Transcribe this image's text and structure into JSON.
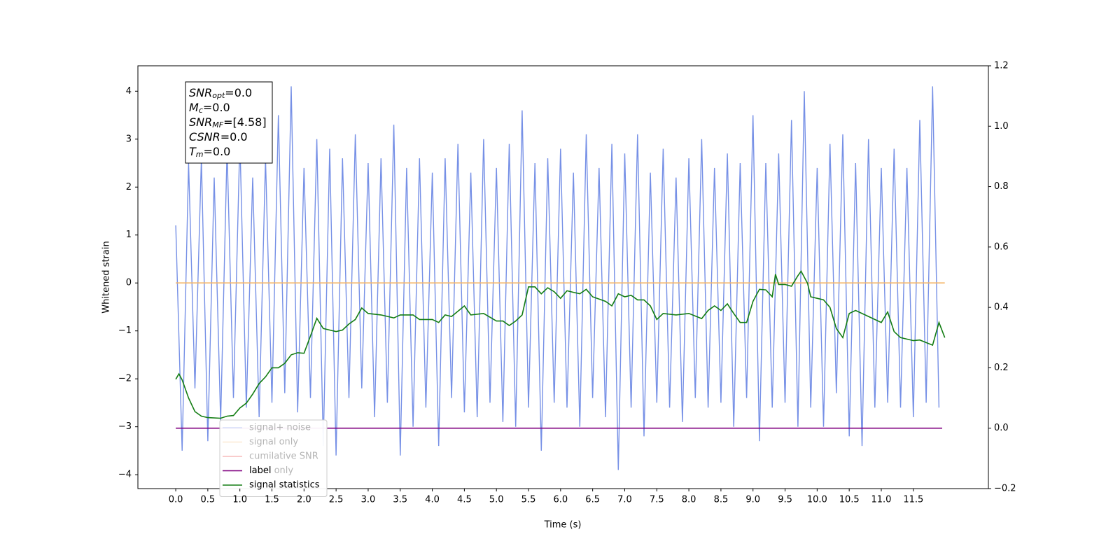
{
  "chart_data": {
    "type": "line",
    "xlabel": "Time (s)",
    "ylabel": "Whitened strain",
    "xlim": [
      -0.59,
      12.67
    ],
    "ylim": [
      -4.29,
      4.53
    ],
    "y2lim": [
      -0.2,
      1.2
    ],
    "xticks": [
      {
        "value": 0,
        "label": "0.0"
      },
      {
        "value": 0.5,
        "label": "0.5"
      },
      {
        "value": 1,
        "label": "1.0"
      },
      {
        "value": 1.5,
        "label": "1.5"
      },
      {
        "value": 2,
        "label": "2.0"
      },
      {
        "value": 2.5,
        "label": "2.5"
      },
      {
        "value": 3,
        "label": "3.0"
      },
      {
        "value": 3.5,
        "label": "3.5"
      },
      {
        "value": 4,
        "label": "4.0"
      },
      {
        "value": 4.5,
        "label": "4.5"
      },
      {
        "value": 5,
        "label": "5.0"
      },
      {
        "value": 5.5,
        "label": "5.5"
      },
      {
        "value": 6,
        "label": "6.0"
      },
      {
        "value": 6.5,
        "label": "6.5"
      },
      {
        "value": 7,
        "label": "7.0"
      },
      {
        "value": 7.5,
        "label": "7.5"
      },
      {
        "value": 8,
        "label": "8.0"
      },
      {
        "value": 8.5,
        "label": "8.5"
      },
      {
        "value": 9,
        "label": "9.0"
      },
      {
        "value": 9.5,
        "label": "9.5"
      },
      {
        "value": 10,
        "label": "10.0"
      },
      {
        "value": 10.5,
        "label": "10.5"
      },
      {
        "value": 11,
        "label": "11.0"
      },
      {
        "value": 11.5,
        "label": "11.5"
      }
    ],
    "yticks": [
      {
        "value": -4,
        "label": "−4"
      },
      {
        "value": -3,
        "label": "−3"
      },
      {
        "value": -2,
        "label": "−2"
      },
      {
        "value": -1,
        "label": "−1"
      },
      0,
      1,
      2,
      3,
      4
    ],
    "y2ticks": [
      {
        "value": -0.2,
        "label": "−0.2"
      },
      {
        "value": 0,
        "label": "0.0"
      },
      0.2,
      0.4,
      0.6,
      0.8,
      {
        "value": 1,
        "label": "1.0"
      },
      1.2
    ],
    "annotation": [
      {
        "text": "SNR",
        "sub": "opt",
        "rest": "=0.0"
      },
      {
        "text": "M",
        "sub": "c",
        "rest": "=0.0"
      },
      {
        "text": "SNR",
        "sub": "MF",
        "rest": "=[4.58]"
      },
      {
        "text": "CSNR",
        "rest": "=0.0"
      },
      {
        "text": "T",
        "sub": "m",
        "rest": "=0.0"
      }
    ],
    "series": [
      {
        "name": "signal+ noise",
        "color": "#7690e6",
        "axis": "y",
        "x": [
          0.0,
          0.1,
          0.2,
          0.3,
          0.4,
          0.5,
          0.6,
          0.7,
          0.8,
          0.9,
          1.0,
          1.1,
          1.2,
          1.3,
          1.4,
          1.5,
          1.6,
          1.7,
          1.8,
          1.9,
          2.0,
          2.1,
          2.2,
          2.3,
          2.4,
          2.5,
          2.6,
          2.7,
          2.8,
          2.9,
          3.0,
          3.1,
          3.2,
          3.3,
          3.4,
          3.5,
          3.6,
          3.7,
          3.8,
          3.9,
          4.0,
          4.1,
          4.2,
          4.3,
          4.4,
          4.5,
          4.6,
          4.7,
          4.8,
          4.9,
          5.0,
          5.1,
          5.2,
          5.3,
          5.4,
          5.5,
          5.6,
          5.7,
          5.8,
          5.9,
          6.0,
          6.1,
          6.2,
          6.3,
          6.4,
          6.5,
          6.6,
          6.7,
          6.8,
          6.9,
          7.0,
          7.1,
          7.2,
          7.3,
          7.4,
          7.5,
          7.6,
          7.7,
          7.8,
          7.9,
          8.0,
          8.1,
          8.2,
          8.3,
          8.4,
          8.5,
          8.6,
          8.7,
          8.8,
          8.9,
          9.0,
          9.1,
          9.2,
          9.3,
          9.4,
          9.5,
          9.6,
          9.7,
          9.8,
          9.9,
          10.0,
          10.1,
          10.2,
          10.3,
          10.4,
          10.5,
          10.6,
          10.7,
          10.8,
          10.9,
          11.0,
          11.1,
          11.2,
          11.3,
          11.4,
          11.5,
          11.6,
          11.7,
          11.8,
          11.9
        ],
        "values": [
          1.2,
          -3.5,
          2.5,
          -2.2,
          2.6,
          -3.3,
          2.2,
          -2.9,
          2.8,
          -2.4,
          3.0,
          -2.6,
          2.2,
          -2.8,
          2.6,
          -2.5,
          3.5,
          -2.3,
          4.1,
          -2.7,
          2.4,
          -2.4,
          3.0,
          -3.4,
          2.8,
          -3.6,
          2.6,
          -2.4,
          3.1,
          -2.2,
          2.5,
          -2.8,
          2.6,
          -2.5,
          3.3,
          -3.6,
          2.4,
          -3.0,
          2.6,
          -2.6,
          2.3,
          -3.4,
          2.6,
          -2.4,
          2.9,
          -2.7,
          2.3,
          -2.8,
          3.0,
          -2.5,
          2.4,
          -2.9,
          2.9,
          -3.0,
          3.6,
          -2.6,
          2.5,
          -3.5,
          2.6,
          -2.5,
          2.8,
          -2.6,
          2.3,
          -3.0,
          3.1,
          -2.4,
          2.4,
          -2.8,
          2.9,
          -3.9,
          2.7,
          -2.6,
          3.1,
          -3.2,
          2.3,
          -2.5,
          2.8,
          -2.6,
          2.2,
          -2.9,
          2.6,
          -2.4,
          3.0,
          -2.6,
          2.4,
          -2.5,
          2.7,
          -3.0,
          2.5,
          -2.4,
          3.5,
          -3.3,
          2.5,
          -2.6,
          2.7,
          -2.5,
          3.4,
          -3.0,
          4.0,
          -2.6,
          2.4,
          -3.0,
          2.9,
          -2.3,
          3.1,
          -3.2,
          2.5,
          -3.4,
          3.0,
          -2.6,
          2.4,
          -2.5,
          2.8,
          -2.6,
          2.4,
          -2.8,
          3.4,
          -2.5,
          4.1,
          -2.6
        ]
      },
      {
        "name": "signal only",
        "color": "#f4b66a",
        "axis": "y",
        "x": [
          0.0,
          11.99
        ],
        "values": [
          0,
          0
        ]
      },
      {
        "name": "cumilative SNR",
        "color": "#e41a1c",
        "axis": "y",
        "x": [],
        "values": []
      },
      {
        "name": "label only",
        "color": "#5a1870",
        "axis": "y",
        "x": [],
        "values": []
      },
      {
        "name": "label",
        "color": "#800080",
        "axis": "y2",
        "x": [
          0.0,
          11.95
        ],
        "values": [
          0,
          0
        ]
      },
      {
        "name": "signal statistics",
        "color": "#137d13",
        "axis": "y2",
        "x": [
          0.0,
          0.05,
          0.1,
          0.2,
          0.3,
          0.4,
          0.5,
          0.7,
          0.8,
          0.9,
          1.0,
          1.1,
          1.2,
          1.3,
          1.4,
          1.5,
          1.6,
          1.7,
          1.8,
          1.9,
          2.0,
          2.1,
          2.2,
          2.3,
          2.4,
          2.5,
          2.6,
          2.7,
          2.8,
          2.9,
          3.0,
          3.2,
          3.4,
          3.5,
          3.7,
          3.8,
          4.0,
          4.1,
          4.2,
          4.3,
          4.5,
          4.6,
          4.8,
          5.0,
          5.1,
          5.2,
          5.3,
          5.4,
          5.5,
          5.6,
          5.7,
          5.8,
          5.9,
          6.0,
          6.1,
          6.2,
          6.3,
          6.4,
          6.5,
          6.7,
          6.8,
          6.9,
          7.0,
          7.1,
          7.2,
          7.3,
          7.4,
          7.5,
          7.6,
          7.8,
          8.0,
          8.2,
          8.3,
          8.4,
          8.5,
          8.6,
          8.7,
          8.8,
          8.9,
          9.0,
          9.1,
          9.2,
          9.3,
          9.35,
          9.4,
          9.5,
          9.6,
          9.7,
          9.75,
          9.85,
          9.9,
          10.0,
          10.1,
          10.2,
          10.3,
          10.4,
          10.5,
          10.6,
          10.8,
          11.0,
          11.1,
          11.2,
          11.3,
          11.5,
          11.6,
          11.8,
          11.9,
          11.99
        ],
        "values": [
          0.162,
          0.18,
          0.16,
          0.1,
          0.055,
          0.04,
          0.035,
          0.033,
          0.04,
          0.042,
          0.067,
          0.083,
          0.113,
          0.148,
          0.17,
          0.2,
          0.2,
          0.215,
          0.243,
          0.25,
          0.248,
          0.305,
          0.364,
          0.33,
          0.325,
          0.32,
          0.325,
          0.345,
          0.36,
          0.398,
          0.38,
          0.375,
          0.365,
          0.375,
          0.375,
          0.36,
          0.36,
          0.35,
          0.375,
          0.37,
          0.405,
          0.375,
          0.38,
          0.355,
          0.355,
          0.34,
          0.355,
          0.375,
          0.468,
          0.468,
          0.445,
          0.465,
          0.452,
          0.43,
          0.455,
          0.45,
          0.445,
          0.46,
          0.435,
          0.42,
          0.405,
          0.445,
          0.435,
          0.44,
          0.425,
          0.425,
          0.405,
          0.36,
          0.38,
          0.375,
          0.38,
          0.363,
          0.39,
          0.405,
          0.39,
          0.412,
          0.38,
          0.35,
          0.35,
          0.42,
          0.46,
          0.458,
          0.435,
          0.51,
          0.476,
          0.476,
          0.47,
          0.505,
          0.52,
          0.48,
          0.435,
          0.43,
          0.425,
          0.4,
          0.33,
          0.3,
          0.38,
          0.39,
          0.37,
          0.35,
          0.385,
          0.32,
          0.3,
          0.29,
          0.292,
          0.275,
          0.35,
          0.3
        ]
      }
    ]
  }
}
